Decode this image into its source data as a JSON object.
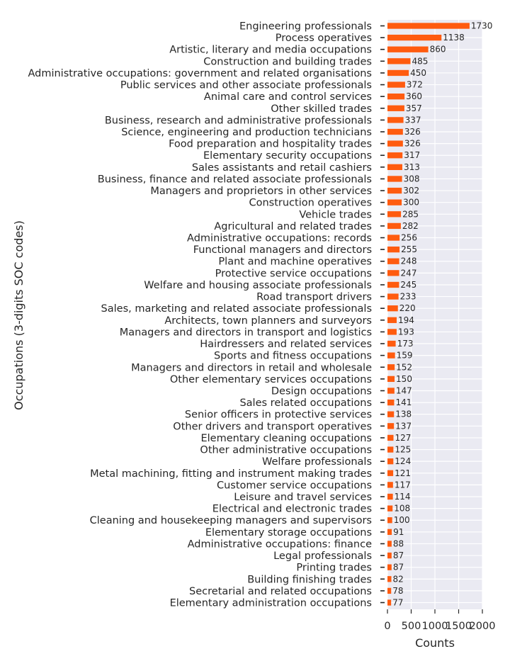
{
  "chart_data": {
    "type": "bar",
    "orientation": "horizontal",
    "xlabel": "Counts",
    "ylabel": "Occupations (3-digits SOC codes)",
    "xlim": [
      0,
      2000
    ],
    "xticks": [
      "0",
      "500",
      "1000",
      "1500",
      "2000"
    ],
    "grid": true,
    "colors": {
      "bar": "#ff5b0f",
      "plot_background": "#eaeaf2",
      "grid": "#ffffff"
    },
    "categories": [
      "Engineering professionals",
      "Process operatives",
      "Artistic, literary and media occupations",
      "Construction and building trades",
      "Administrative occupations: government and related organisations",
      "Public services and other associate professionals",
      "Animal care and control services",
      "Other skilled trades",
      "Business, research and administrative professionals",
      "Science, engineering and production technicians",
      "Food preparation and hospitality trades",
      "Elementary security occupations",
      "Sales assistants and retail cashiers",
      "Business, finance and related associate professionals",
      "Managers and proprietors in other services",
      "Construction operatives",
      "Vehicle trades",
      "Agricultural and related trades",
      "Administrative occupations: records",
      "Functional managers and directors",
      "Plant and machine operatives",
      "Protective service occupations",
      "Welfare and housing associate professionals",
      "Road transport drivers",
      "Sales, marketing and related associate professionals",
      "Architects, town planners and surveyors",
      "Managers and directors in transport and logistics",
      "Hairdressers and related services",
      "Sports and fitness occupations",
      "Managers and directors in retail and wholesale",
      "Other elementary services occupations",
      "Design occupations",
      "Sales related occupations",
      "Senior officers in protective services",
      "Other drivers and transport operatives",
      "Elementary cleaning occupations",
      "Other administrative occupations",
      "Welfare professionals",
      "Metal machining, fitting and instrument making trades",
      "Customer service occupations",
      "Leisure and travel services",
      "Electrical and electronic trades",
      "Cleaning and housekeeping managers and supervisors",
      "Elementary storage occupations",
      "Administrative occupations: finance",
      "Legal professionals",
      "Printing trades",
      "Building finishing trades",
      "Secretarial and related occupations",
      "Elementary administration occupations"
    ],
    "values": [
      1730,
      1138,
      860,
      485,
      450,
      372,
      360,
      357,
      337,
      326,
      326,
      317,
      313,
      308,
      302,
      300,
      285,
      282,
      256,
      255,
      248,
      247,
      245,
      233,
      220,
      194,
      193,
      173,
      159,
      152,
      150,
      147,
      141,
      138,
      137,
      127,
      125,
      124,
      121,
      117,
      114,
      108,
      100,
      91,
      88,
      87,
      87,
      82,
      78,
      77
    ]
  }
}
